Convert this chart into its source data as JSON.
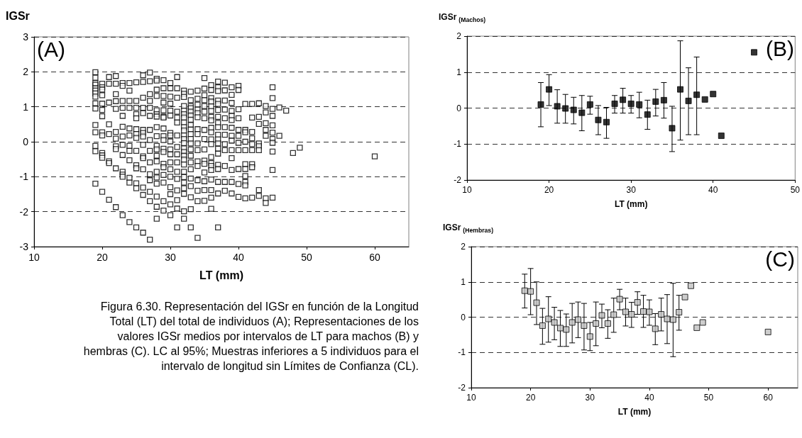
{
  "chart_data": [
    {
      "type": "scatter",
      "ylabel": "IGSr",
      "xlabel": "LT (mm)",
      "annotations": [
        "(A)",
        "Figura 6.30. Representación del IGSr en función de la Longitud Total (LT) del total de individuos (A); Representaciones de los valores IGSr medios por intervalos de LT para machos (B) y hembras (C). LC al 95%; Muestras inferiores a 5 individuos para el intervalo de longitud sin Límites de Confianza (CL)."
      ],
      "marker": "square",
      "color": "#000000",
      "grid": "y",
      "xlim": [
        10,
        65
      ],
      "xticks": [
        10,
        20,
        30,
        40,
        50,
        60
      ],
      "ylim": [
        -3,
        3
      ],
      "yticks": [
        -3,
        -2,
        -1,
        0,
        1,
        2,
        3
      ],
      "x": [
        19,
        19,
        19,
        19,
        19,
        19,
        19,
        19,
        19,
        19,
        19,
        19,
        19,
        19,
        19,
        20,
        20,
        20,
        20,
        20,
        20,
        20,
        20,
        20,
        20,
        20,
        20,
        20,
        21,
        21,
        21,
        21,
        21,
        21,
        21,
        21,
        22,
        22,
        22,
        22,
        22,
        22,
        22,
        22,
        22,
        22,
        22,
        23,
        23,
        23,
        23,
        23,
        23,
        23,
        23,
        23,
        23,
        23,
        23,
        23,
        24,
        24,
        24,
        24,
        24,
        24,
        24,
        24,
        24,
        24,
        24,
        24,
        25,
        25,
        25,
        25,
        25,
        25,
        25,
        25,
        25,
        25,
        25,
        25,
        25,
        25,
        26,
        26,
        26,
        26,
        26,
        26,
        26,
        26,
        26,
        26,
        26,
        26,
        26,
        26,
        26,
        27,
        27,
        27,
        27,
        27,
        27,
        27,
        27,
        27,
        27,
        27,
        27,
        27,
        27,
        27,
        28,
        28,
        28,
        28,
        28,
        28,
        28,
        28,
        28,
        28,
        28,
        28,
        28,
        28,
        28,
        28,
        28,
        28,
        28,
        29,
        29,
        29,
        29,
        29,
        29,
        29,
        29,
        29,
        29,
        29,
        29,
        29,
        29,
        29,
        29,
        29,
        29,
        30,
        30,
        30,
        30,
        30,
        30,
        30,
        30,
        30,
        30,
        30,
        30,
        30,
        30,
        30,
        30,
        30,
        30,
        31,
        31,
        31,
        31,
        31,
        31,
        31,
        31,
        31,
        31,
        31,
        31,
        31,
        31,
        31,
        31,
        32,
        32,
        32,
        32,
        32,
        32,
        32,
        32,
        32,
        32,
        32,
        32,
        32,
        32,
        32,
        32,
        32,
        32,
        32,
        32,
        32,
        32,
        32,
        32,
        32,
        33,
        33,
        33,
        33,
        33,
        33,
        33,
        33,
        33,
        33,
        33,
        33,
        33,
        33,
        33,
        33,
        33,
        33,
        33,
        33,
        33,
        34,
        34,
        34,
        34,
        34,
        34,
        34,
        34,
        34,
        34,
        34,
        34,
        34,
        34,
        34,
        34,
        35,
        35,
        35,
        35,
        35,
        35,
        35,
        35,
        35,
        35,
        35,
        35,
        35,
        35,
        35,
        35,
        36,
        36,
        36,
        36,
        36,
        36,
        36,
        36,
        36,
        36,
        36,
        36,
        36,
        36,
        36,
        36,
        36,
        36,
        36,
        36,
        37,
        37,
        37,
        37,
        37,
        37,
        37,
        37,
        37,
        37,
        37,
        37,
        37,
        37,
        37,
        37,
        37,
        37,
        37,
        38,
        38,
        38,
        38,
        38,
        38,
        38,
        38,
        38,
        38,
        38,
        38,
        39,
        39,
        39,
        39,
        39,
        39,
        39,
        39,
        39,
        39,
        39,
        39,
        39,
        39,
        40,
        40,
        40,
        40,
        40,
        40,
        40,
        40,
        40,
        40,
        40,
        41,
        41,
        41,
        41,
        41,
        41,
        41,
        41,
        41,
        41,
        41,
        42,
        42,
        42,
        42,
        42,
        42,
        42,
        42,
        42,
        43,
        43,
        43,
        43,
        43,
        43,
        43,
        43,
        44,
        44,
        44,
        44,
        44,
        44,
        44,
        45,
        45,
        45,
        45,
        45,
        45,
        45,
        45,
        45,
        45,
        45,
        46,
        46,
        47,
        48,
        49,
        60
      ],
      "values": [
        1.99,
        1.83,
        1.68,
        1.63,
        1.53,
        1.46,
        1.38,
        1.29,
        1.1,
        0.95,
        0.48,
        0.27,
        -0.12,
        -0.27,
        -1.2,
        1.66,
        1.56,
        1.49,
        1.33,
        1.09,
        0.91,
        0.73,
        0.27,
        0.18,
        -0.32,
        -0.39,
        -0.46,
        -1.43,
        1.85,
        1.66,
        1.12,
        0.5,
        0.22,
        -0.56,
        -0.61,
        -1.66,
        1.88,
        1.66,
        1.36,
        1.16,
        0.94,
        0.28,
        0.09,
        -0.13,
        -0.21,
        -0.76,
        -1.87,
        1.68,
        1.6,
        1.17,
        0.97,
        0.74,
        0.43,
        0.15,
        -0.09,
        -0.38,
        -0.86,
        -0.94,
        -1.0,
        -2.1,
        1.68,
        1.46,
        1.17,
        0.97,
        0.38,
        0.18,
        -0.12,
        -0.26,
        -0.53,
        -1.03,
        -1.17,
        -2.3,
        1.7,
        1.17,
        0.97,
        0.79,
        0.67,
        0.36,
        0.22,
        0.11,
        -0.26,
        -0.67,
        -0.76,
        -1.19,
        -1.33,
        -2.45,
        1.9,
        1.71,
        1.26,
        0.97,
        0.82,
        0.34,
        0.25,
        0.15,
        -0.09,
        -0.42,
        -0.47,
        -0.79,
        -1.31,
        -1.52,
        -2.6,
        1.98,
        1.73,
        1.36,
        1.17,
        0.97,
        0.74,
        0.34,
        0.05,
        -0.26,
        -0.59,
        -0.93,
        -1.1,
        -1.43,
        -1.7,
        -2.8,
        1.8,
        1.75,
        1.49,
        1.31,
        0.9,
        0.79,
        0.72,
        0.42,
        0.16,
        -0.12,
        -0.22,
        -0.4,
        -0.56,
        -0.86,
        -1.02,
        -1.2,
        -1.57,
        -1.86,
        -2.2,
        1.76,
        1.53,
        1.31,
        1.12,
        0.9,
        0.72,
        0.69,
        0.38,
        0.16,
        0.05,
        -0.2,
        -0.29,
        -0.63,
        -0.73,
        -0.95,
        -1.17,
        -1.7,
        -1.97,
        1.68,
        1.53,
        1.29,
        1.09,
        0.89,
        0.75,
        0.25,
        0.18,
        0.01,
        -0.22,
        -0.36,
        -0.59,
        -0.79,
        -1.0,
        -1.3,
        -1.5,
        -1.79,
        -2.1,
        1.85,
        1.53,
        1.26,
        0.86,
        0.69,
        0.55,
        0.18,
        -0.15,
        -0.36,
        -0.59,
        -0.86,
        -1.06,
        -1.39,
        -1.67,
        -1.91,
        -2.45,
        1.46,
        1.37,
        1.28,
        1.02,
        0.89,
        0.79,
        0.69,
        0.55,
        0.42,
        0.32,
        0.18,
        0.08,
        -0.04,
        -0.19,
        -0.29,
        -0.4,
        -0.51,
        -0.65,
        -0.86,
        -1.01,
        -1.17,
        -1.33,
        -1.49,
        -1.99,
        -2.2,
        1.43,
        1.19,
        1.02,
        0.96,
        0.86,
        0.75,
        0.63,
        0.48,
        0.35,
        0.22,
        0.08,
        -0.05,
        -0.22,
        -0.4,
        -0.59,
        -0.79,
        -1.05,
        -1.27,
        -1.59,
        -1.93,
        -2.45,
        1.46,
        1.23,
        1.06,
        0.92,
        0.82,
        0.7,
        0.36,
        0.22,
        -0.05,
        -0.24,
        -0.56,
        -0.69,
        -1.1,
        -1.4,
        -1.7,
        -2.75,
        1.82,
        1.52,
        1.33,
        1.19,
        1.02,
        0.86,
        0.67,
        0.34,
        0.08,
        -0.22,
        -0.54,
        -0.63,
        -0.88,
        -1.13,
        -1.38,
        -1.69,
        1.62,
        1.48,
        1.25,
        1.15,
        1.01,
        0.88,
        0.71,
        0.61,
        0.4,
        0.27,
        0.07,
        -0.07,
        -0.44,
        -0.61,
        -0.69,
        -0.81,
        -1.08,
        -1.38,
        -1.6,
        -1.92,
        1.72,
        1.56,
        1.45,
        1.18,
        1.08,
        0.91,
        0.71,
        0.54,
        0.42,
        0.2,
        0.07,
        -0.05,
        -0.2,
        -0.34,
        -0.66,
        -0.78,
        -1.15,
        -1.48,
        -2.45,
        1.69,
        1.47,
        1.18,
        0.92,
        0.67,
        0.42,
        0.2,
        -0.07,
        -0.24,
        -0.69,
        -1.15,
        -1.4,
        1.56,
        1.34,
        1.11,
        0.88,
        0.74,
        0.62,
        0.4,
        0.17,
        0.03,
        -0.24,
        -0.47,
        -0.81,
        -1.15,
        -1.48,
        1.6,
        1.48,
        0.93,
        0.67,
        0.34,
        0.17,
        -0.03,
        -0.24,
        -0.78,
        -1.21,
        -1.58,
        1.08,
        0.34,
        0.27,
        0.0,
        -0.24,
        -0.64,
        -0.78,
        -0.98,
        -1.15,
        -1.25,
        -1.62,
        1.08,
        0.69,
        0.28,
        0.1,
        -0.07,
        -0.24,
        -0.64,
        -0.73,
        -1.6,
        1.1,
        0.71,
        0.51,
        -0.05,
        -0.13,
        -0.24,
        -1.38,
        -1.55,
        1.02,
        0.84,
        0.53,
        0.34,
        0.17,
        -1.62,
        -1.75,
        1.56,
        1.25,
        0.94,
        0.74,
        0.47,
        0.26,
        0.08,
        -0.03,
        -0.28,
        -0.81,
        -1.6,
        0.98,
        0.17,
        0.89,
        -0.32,
        -0.17,
        -0.42
      ]
    },
    {
      "type": "scatter",
      "ylabel": "IGSr$_{(Machos)}$",
      "xlabel": "LT (mm)",
      "annotations": [
        "(B)"
      ],
      "marker": "square",
      "color": "#000000",
      "grid": "y",
      "xlim": [
        10,
        50
      ],
      "xticks": [
        10,
        20,
        30,
        40,
        50
      ],
      "ylim": [
        -2,
        2
      ],
      "yticks": [
        -2,
        -1,
        0,
        1,
        2
      ],
      "x": [
        19,
        20,
        21,
        22,
        23,
        24,
        25,
        26,
        27,
        28,
        29,
        30,
        31,
        32,
        33,
        34,
        35,
        36,
        37,
        38,
        39,
        40,
        41,
        45
      ],
      "values": [
        0.1,
        0.52,
        0.05,
        -0.01,
        -0.05,
        -0.13,
        0.1,
        -0.33,
        -0.39,
        0.12,
        0.23,
        0.12,
        0.1,
        -0.18,
        0.18,
        0.22,
        -0.56,
        0.52,
        0.2,
        0.37,
        0.24,
        0.39,
        -0.77,
        1.55
      ],
      "errors": [
        [
          -0.52,
          0.71
        ],
        [
          0.07,
          0.93
        ],
        [
          -0.42,
          0.51
        ],
        [
          -0.42,
          0.38
        ],
        [
          -0.44,
          0.3
        ],
        [
          -0.63,
          0.35
        ],
        [
          -0.17,
          0.33
        ],
        [
          -0.74,
          0.07
        ],
        [
          -0.84,
          0.02
        ],
        [
          -0.14,
          0.35
        ],
        [
          -0.14,
          0.55
        ],
        [
          -0.14,
          0.35
        ],
        [
          -0.27,
          0.44
        ],
        [
          -0.59,
          0.22
        ],
        [
          -0.22,
          0.52
        ],
        [
          -0.28,
          0.71
        ],
        [
          -1.21,
          0.05
        ],
        [
          -0.89,
          1.87
        ],
        [
          -0.74,
          1.12
        ],
        [
          -0.74,
          1.42
        ],
        null,
        null,
        null,
        null
      ]
    },
    {
      "type": "scatter",
      "ylabel": "IGSr$_{(Hembras)}$",
      "xlabel": "LT (mm)",
      "annotations": [
        "(C)"
      ],
      "marker": "square",
      "color": "#c0c0c0",
      "grid": "y",
      "xlim": [
        10,
        65
      ],
      "xticks": [
        10,
        20,
        30,
        40,
        50,
        60
      ],
      "ylim": [
        -2,
        2
      ],
      "yticks": [
        -2,
        -1,
        0,
        1,
        2
      ],
      "x": [
        19,
        20,
        21,
        22,
        23,
        24,
        25,
        26,
        27,
        28,
        29,
        30,
        31,
        32,
        33,
        34,
        35,
        36,
        37,
        38,
        39,
        40,
        41,
        42,
        43,
        44,
        45,
        46,
        47,
        48,
        49,
        60
      ],
      "values": [
        0.75,
        0.73,
        0.41,
        -0.24,
        -0.05,
        -0.15,
        -0.31,
        -0.35,
        -0.15,
        -0.07,
        -0.24,
        -0.55,
        -0.18,
        0.05,
        -0.18,
        0.07,
        0.51,
        0.15,
        0.08,
        0.42,
        0.16,
        0.15,
        -0.33,
        0.08,
        -0.05,
        -0.07,
        0.14,
        0.57,
        0.89,
        -0.3,
        -0.15,
        -0.42
      ],
      "errors": [
        [
          0.26,
          1.22
        ],
        [
          0.07,
          1.38
        ],
        [
          -0.21,
          1.0
        ],
        [
          -0.77,
          0.25
        ],
        [
          -0.71,
          0.58
        ],
        [
          -0.64,
          0.28
        ],
        [
          -0.83,
          0.19
        ],
        [
          -0.83,
          0.09
        ],
        [
          -0.73,
          0.39
        ],
        [
          -0.58,
          0.43
        ],
        [
          -0.93,
          0.39
        ],
        [
          -0.95,
          -0.15
        ],
        [
          -0.81,
          0.43
        ],
        [
          -0.3,
          0.37
        ],
        [
          -0.6,
          0.21
        ],
        [
          -0.43,
          0.54
        ],
        [
          0.21,
          0.79
        ],
        [
          -0.25,
          0.54
        ],
        [
          -0.29,
          0.42
        ],
        [
          0.08,
          0.72
        ],
        [
          -0.29,
          0.62
        ],
        [
          -0.23,
          0.49
        ],
        [
          -0.78,
          0.1
        ],
        [
          -0.39,
          0.54
        ],
        [
          -0.75,
          0.64
        ],
        [
          -1.12,
          0.96
        ],
        [
          -0.37,
          0.62
        ],
        null,
        null,
        null,
        null,
        null
      ]
    }
  ]
}
